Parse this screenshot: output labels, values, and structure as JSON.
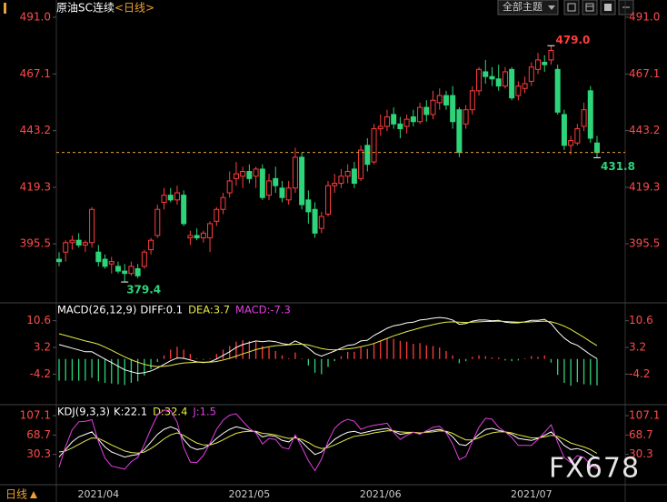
{
  "header": {
    "title": "原油SC连续",
    "period": "<日线>",
    "theme_button": "全部主题",
    "bottom_period": "日线"
  },
  "watermark": "FX678",
  "chart_data": [
    {
      "type": "candlestick",
      "categories": [
        null,
        null,
        null,
        null,
        null,
        null,
        "2021/04",
        null,
        null,
        null,
        null,
        null,
        null,
        null,
        null,
        null,
        null,
        null,
        null,
        null,
        null,
        null,
        null,
        null,
        null,
        null,
        null,
        null,
        null,
        "2021/05",
        null,
        null,
        null,
        null,
        null,
        null,
        null,
        null,
        null,
        null,
        null,
        null,
        null,
        null,
        null,
        null,
        null,
        null,
        null,
        "2021/06",
        null,
        null,
        null,
        null,
        null,
        null,
        null,
        null,
        null,
        null,
        null,
        null,
        null,
        null,
        null,
        null,
        null,
        null,
        null,
        null,
        null,
        null,
        "2021/07",
        null,
        null,
        null,
        null,
        null,
        null,
        null,
        null,
        null,
        null
      ],
      "open": [
        389,
        392,
        396,
        397,
        395,
        396,
        392,
        389,
        387,
        386,
        384,
        383,
        385,
        386,
        393,
        399,
        413,
        416,
        414,
        416,
        398,
        399,
        398,
        398,
        405,
        410,
        417,
        423,
        424,
        426,
        424,
        427,
        416,
        423,
        419,
        414,
        419,
        432,
        414,
        410,
        402,
        408,
        420,
        421,
        424,
        427,
        423,
        437,
        430,
        444,
        445,
        450,
        446,
        445,
        449,
        447,
        453,
        450,
        455,
        458,
        458,
        452,
        446,
        452,
        460,
        468,
        466,
        465,
        462,
        469,
        458,
        461,
        464,
        469,
        472,
        473,
        469,
        450,
        437,
        438,
        445,
        460,
        438
      ],
      "high": [
        392,
        397,
        399,
        400,
        397,
        411,
        395,
        391,
        390,
        388,
        387,
        388,
        387,
        393,
        398,
        412,
        419,
        419,
        420,
        418,
        401,
        402,
        401,
        405,
        411,
        417,
        426,
        430,
        428,
        429,
        428,
        429,
        425,
        428,
        422,
        422,
        436,
        434,
        418,
        413,
        409,
        422,
        425,
        427,
        429,
        430,
        437,
        440,
        446,
        450,
        452,
        453,
        449,
        450,
        452,
        455,
        456,
        460,
        461,
        460,
        462,
        453,
        454,
        462,
        470,
        473,
        470,
        471,
        470,
        470,
        464,
        466,
        472,
        476,
        475,
        479,
        471,
        452,
        441,
        446,
        455,
        462,
        441
      ],
      "low": [
        386,
        388,
        393,
        394,
        392,
        394,
        386,
        385,
        383,
        383,
        379.4,
        382,
        381,
        385,
        391,
        398,
        410,
        413,
        412,
        403,
        395,
        397,
        396,
        392,
        403,
        408,
        415,
        420,
        419,
        421,
        419,
        414,
        414,
        417,
        413,
        412,
        417,
        410,
        404,
        398,
        400,
        407,
        417,
        419,
        421,
        419,
        422,
        426,
        429,
        441,
        443,
        444,
        440,
        442,
        445,
        446,
        447,
        448,
        452,
        452,
        444,
        432,
        444,
        450,
        458,
        463,
        462,
        460,
        461,
        456,
        456,
        459,
        462,
        467,
        468,
        471,
        450,
        435,
        433,
        437,
        443,
        438,
        431.8
      ],
      "close": [
        388,
        396,
        397,
        395,
        396,
        410,
        388,
        386,
        388,
        384,
        383,
        386,
        382,
        392,
        397,
        410,
        416,
        414,
        417,
        404,
        399,
        398,
        400,
        404,
        410,
        415,
        422,
        425,
        426,
        423,
        427,
        415,
        422,
        420,
        415,
        419,
        432,
        412,
        409,
        400,
        407,
        420,
        421,
        424,
        426,
        421,
        435,
        429,
        444,
        445,
        449,
        446,
        444,
        448,
        447,
        453,
        450,
        456,
        458,
        454,
        447,
        434,
        452,
        460,
        469,
        466,
        465,
        462,
        468,
        457,
        462,
        463,
        470,
        473,
        471,
        477,
        451,
        437,
        439,
        444,
        452,
        440,
        434
      ],
      "up_color": "#ff3d3d",
      "down_color": "#2ed47a",
      "last_line_color": "#e6a23c",
      "ylim": [
        371,
        495.2
      ],
      "yticks": [
        {
          "value": 491,
          "label": "491.0"
        },
        467.1,
        443.2,
        419.3,
        395.5
      ],
      "high_label": "479.0",
      "low_label": "379.4",
      "last_low_label": "431.8"
    },
    {
      "type": "macd",
      "title": "MACD(26,12,9)",
      "title_color": "#ffffff",
      "series": [
        {
          "name": "DIFF:0.1",
          "color": "#ffffff",
          "values": [
            4,
            3.5,
            3,
            2.5,
            2,
            2,
            1,
            0,
            -1,
            -2,
            -3,
            -3.5,
            -4,
            -3.8,
            -3.3,
            -2.5,
            -1.5,
            -0.5,
            0.3,
            0.2,
            -0.3,
            -0.8,
            -1,
            -0.8,
            0,
            1,
            2,
            3.2,
            4,
            4.5,
            5,
            4.8,
            5,
            4.8,
            4.3,
            4,
            5,
            4.2,
            3,
            1.5,
            0.8,
            1.5,
            2.2,
            3,
            3.8,
            4,
            5,
            5.2,
            6.5,
            7.5,
            8.5,
            9.2,
            9.5,
            10,
            10.2,
            10.8,
            11,
            11.3,
            11.5,
            11.3,
            10.8,
            9.6,
            9.8,
            10.5,
            10.8,
            10.8,
            10.6,
            10.7,
            10.2,
            10,
            10,
            10.3,
            10.7,
            10.7,
            11,
            9.8,
            7.6,
            5.8,
            4.5,
            3.8,
            2.5,
            1.2,
            0.1
          ]
        },
        {
          "name": "DEA:3.7",
          "color": "#e8e84a",
          "values": [
            7,
            6.5,
            6,
            5.5,
            5,
            4.6,
            4.1,
            3.3,
            2.4,
            1.5,
            0.6,
            -0.2,
            -0.9,
            -1.5,
            -1.9,
            -2.1,
            -2,
            -1.8,
            -1.4,
            -1.1,
            -1,
            -0.9,
            -0.9,
            -0.9,
            -0.7,
            -0.3,
            0.2,
            0.8,
            1.4,
            2,
            2.6,
            3,
            3.4,
            3.7,
            3.8,
            3.9,
            4.1,
            4.1,
            3.9,
            3.4,
            2.9,
            2.6,
            2.5,
            2.6,
            2.8,
            3,
            3.4,
            3.8,
            4.3,
            5,
            5.7,
            6.4,
            7,
            7.6,
            8.1,
            8.6,
            9.1,
            9.5,
            9.9,
            10.2,
            10.3,
            10.2,
            10.1,
            10.2,
            10.3,
            10.4,
            10.4,
            10.5,
            10.4,
            10.3,
            10.2,
            10.2,
            10.3,
            10.4,
            10.5,
            10.3,
            9.8,
            9.1,
            8.2,
            7.1,
            6,
            4.8,
            3.7
          ]
        },
        {
          "name": "MACD:-7.3",
          "color": "#e040e0",
          "style": "bar",
          "up_color": "#ff3d3d",
          "down_color": "#2ed47a",
          "values": [
            -6,
            -6,
            -6,
            -6,
            -6,
            -5.2,
            -6.2,
            -6.6,
            -6.8,
            -7,
            -7.2,
            -6.6,
            -6.2,
            -4.6,
            -2.8,
            -0.8,
            1,
            2.6,
            3.4,
            2.6,
            1.4,
            0.2,
            -0.2,
            0.2,
            1.4,
            2.6,
            3.6,
            4.8,
            5.2,
            5,
            4.8,
            3.6,
            3.2,
            2.2,
            1,
            0.2,
            1.8,
            0.2,
            -1.8,
            -3.8,
            -4.2,
            -2.2,
            -0.6,
            0.8,
            2,
            2,
            3.2,
            2.8,
            4.4,
            5,
            5.6,
            5.6,
            5,
            4.8,
            4.2,
            4.4,
            3.8,
            3.6,
            3.2,
            2.2,
            1,
            -1.2,
            -0.6,
            0.6,
            1,
            0.8,
            0.4,
            0.4,
            -0.4,
            -0.6,
            -0.4,
            0.2,
            0.8,
            0.6,
            1,
            -1,
            -4.4,
            -6.6,
            -7.4,
            -6.4,
            -7,
            -7.2,
            -7.3
          ]
        }
      ],
      "ylim": [
        -12.4,
        15.3
      ],
      "yticks": [
        10.6,
        3.2,
        -4.2
      ]
    },
    {
      "type": "kdj",
      "title": "KDJ(9,3,3)",
      "title_color": "#ffffff",
      "series": [
        {
          "name": "K:22.1",
          "color": "#ffffff",
          "values": [
            25,
            40,
            55,
            65,
            70,
            75,
            60,
            45,
            35,
            30,
            25,
            28,
            30,
            40,
            55,
            70,
            80,
            85,
            80,
            60,
            45,
            40,
            42,
            50,
            62,
            72,
            80,
            85,
            82,
            78,
            75,
            65,
            68,
            66,
            58,
            55,
            65,
            55,
            42,
            30,
            35,
            48,
            60,
            68,
            74,
            76,
            72,
            75,
            78,
            80,
            82,
            76,
            70,
            72,
            74,
            72,
            75,
            78,
            80,
            75,
            65,
            50,
            48,
            58,
            70,
            80,
            82,
            78,
            75,
            70,
            62,
            60,
            58,
            62,
            68,
            75,
            62,
            48,
            40,
            42,
            38,
            30,
            22.1
          ]
        },
        {
          "name": "D:32.4",
          "color": "#e8e84a",
          "values": [
            35,
            37,
            43,
            50,
            57,
            63,
            62,
            56,
            49,
            43,
            37,
            34,
            33,
            35,
            42,
            51,
            61,
            69,
            73,
            68,
            60,
            53,
            49,
            49,
            53,
            59,
            66,
            72,
            75,
            76,
            76,
            72,
            71,
            69,
            65,
            62,
            63,
            60,
            54,
            46,
            42,
            44,
            49,
            55,
            61,
            66,
            68,
            70,
            73,
            75,
            77,
            77,
            75,
            74,
            74,
            73,
            74,
            75,
            77,
            76,
            72,
            65,
            59,
            59,
            63,
            69,
            73,
            75,
            75,
            73,
            69,
            66,
            63,
            63,
            65,
            68,
            66,
            60,
            53,
            49,
            45,
            40,
            32.4
          ]
        },
        {
          "name": "J:1.5",
          "color": "#e040e0",
          "values": [
            5,
            46,
            79,
            95,
            96,
            99,
            56,
            23,
            7,
            4,
            1,
            16,
            24,
            50,
            81,
            108,
            118,
            117,
            94,
            44,
            15,
            14,
            28,
            52,
            80,
            98,
            108,
            111,
            96,
            82,
            73,
            51,
            62,
            60,
            44,
            41,
            69,
            45,
            18,
            -2,
            21,
            56,
            82,
            94,
            100,
            96,
            80,
            85,
            88,
            90,
            92,
            74,
            60,
            68,
            74,
            70,
            77,
            84,
            86,
            73,
            51,
            20,
            26,
            56,
            84,
            102,
            100,
            84,
            75,
            64,
            48,
            48,
            48,
            60,
            74,
            89,
            54,
            24,
            14,
            28,
            24,
            10,
            1.5
          ]
        }
      ],
      "ylim": [
        -28,
        127
      ],
      "yticks": [
        107.1,
        68.7,
        30.3
      ]
    }
  ]
}
